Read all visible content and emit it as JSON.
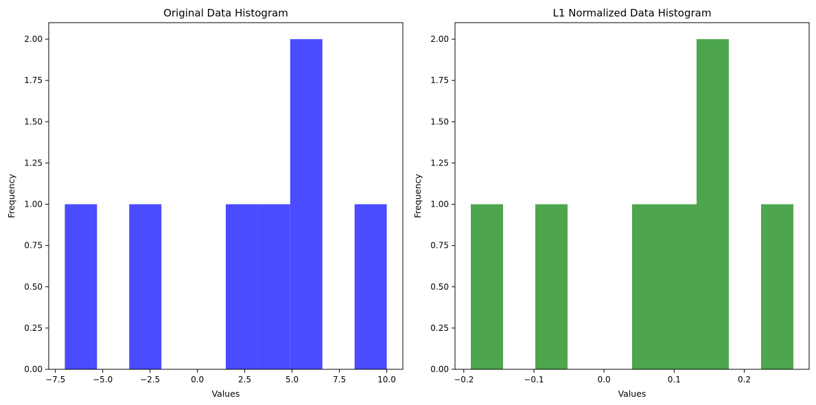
{
  "chart_data": [
    {
      "type": "bar",
      "title": "Original Data Histogram",
      "xlabel": "Values",
      "ylabel": "Frequency",
      "color": "#4b4bff",
      "xlim": [
        -7.85,
        10.85
      ],
      "ylim": [
        0,
        2.1
      ],
      "xticks": [
        -7.5,
        -5.0,
        -2.5,
        0.0,
        2.5,
        5.0,
        7.5,
        10.0
      ],
      "xtick_labels": [
        "−7.5",
        "−5.0",
        "−2.5",
        "0.0",
        "2.5",
        "5.0",
        "7.5",
        "10.0"
      ],
      "yticks": [
        0,
        0.25,
        0.5,
        0.75,
        1.0,
        1.25,
        1.5,
        1.75,
        2.0
      ],
      "ytick_labels": [
        "0.00",
        "0.25",
        "0.50",
        "0.75",
        "1.00",
        "1.25",
        "1.50",
        "1.75",
        "2.00"
      ],
      "bins": [
        {
          "x0": -7.0,
          "x1": -5.3,
          "count": 1
        },
        {
          "x0": -5.3,
          "x1": -3.6,
          "count": 0
        },
        {
          "x0": -3.6,
          "x1": -1.9,
          "count": 1
        },
        {
          "x0": -1.9,
          "x1": -0.2,
          "count": 0
        },
        {
          "x0": -0.2,
          "x1": 1.5,
          "count": 0
        },
        {
          "x0": 1.5,
          "x1": 3.2,
          "count": 1
        },
        {
          "x0": 3.2,
          "x1": 4.9,
          "count": 1
        },
        {
          "x0": 4.9,
          "x1": 6.6,
          "count": 2
        },
        {
          "x0": 6.6,
          "x1": 8.3,
          "count": 0
        },
        {
          "x0": 8.3,
          "x1": 10.0,
          "count": 1
        }
      ]
    },
    {
      "type": "bar",
      "title": "L1 Normalized Data Histogram",
      "xlabel": "Values",
      "ylabel": "Frequency",
      "color": "#4da64d",
      "xlim": [
        -0.2125,
        0.2925
      ],
      "ylim": [
        0,
        2.1
      ],
      "xticks": [
        -0.2,
        -0.1,
        0.0,
        0.1,
        0.2
      ],
      "xtick_labels": [
        "−0.2",
        "−0.1",
        "0.0",
        "0.1",
        "0.2"
      ],
      "yticks": [
        0,
        0.25,
        0.5,
        0.75,
        1.0,
        1.25,
        1.5,
        1.75,
        2.0
      ],
      "ytick_labels": [
        "0.00",
        "0.25",
        "0.50",
        "0.75",
        "1.00",
        "1.25",
        "1.50",
        "1.75",
        "2.00"
      ],
      "bins": [
        {
          "x0": -0.19,
          "x1": -0.144,
          "count": 1
        },
        {
          "x0": -0.144,
          "x1": -0.098,
          "count": 0
        },
        {
          "x0": -0.098,
          "x1": -0.052,
          "count": 1
        },
        {
          "x0": -0.052,
          "x1": -0.006,
          "count": 0
        },
        {
          "x0": -0.006,
          "x1": 0.04,
          "count": 0
        },
        {
          "x0": 0.04,
          "x1": 0.086,
          "count": 1
        },
        {
          "x0": 0.086,
          "x1": 0.132,
          "count": 1
        },
        {
          "x0": 0.132,
          "x1": 0.178,
          "count": 2
        },
        {
          "x0": 0.178,
          "x1": 0.224,
          "count": 0
        },
        {
          "x0": 0.224,
          "x1": 0.27,
          "count": 1
        }
      ]
    }
  ]
}
